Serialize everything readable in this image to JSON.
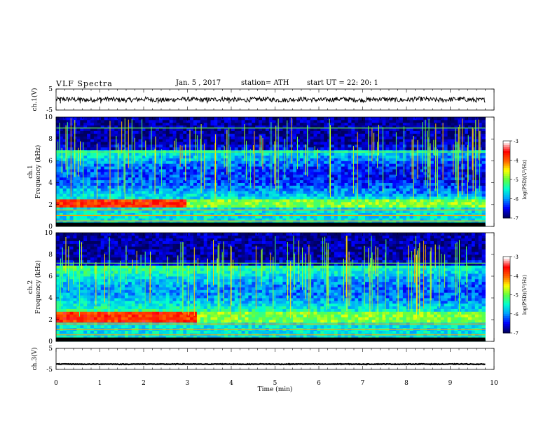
{
  "header": {
    "title": "VLF  Spectra",
    "date": "Jan. 5  , 2017",
    "station": "station= ATH",
    "start_ut": "start  UT  =   22: 20: 1"
  },
  "colors": {
    "trace": "#000000",
    "axis": "#000000",
    "colormap": [
      "#000060",
      "#0000ff",
      "#00a0ff",
      "#00ffd0",
      "#60ff40",
      "#ffff00",
      "#ff6000",
      "#ff0000",
      "#ffffff"
    ]
  },
  "chart_data": [
    {
      "type": "line",
      "ylabel": "ch.1(V)",
      "y_ticks": [
        "5",
        "-5"
      ],
      "ylim": [
        -5,
        5
      ],
      "xlim": [
        0,
        10
      ],
      "series": [
        {
          "mean": 0,
          "noise": 1.1,
          "x_end": 9.8
        }
      ]
    },
    {
      "type": "heatmap",
      "ylabel_line1": "ch.1",
      "ylabel_line2": "Frequency (kHz)",
      "y_ticks": [
        "0",
        "2",
        "4",
        "6",
        "8",
        "10"
      ],
      "ylim": [
        0,
        10
      ],
      "xlim": [
        0,
        10
      ],
      "x_end": 9.8,
      "colorbar": {
        "label": "log(PSD)(V²/Hz)",
        "ticks": [
          "-3",
          "-4",
          "-5",
          "-6",
          "-7"
        ],
        "range": [
          -7,
          -3
        ]
      },
      "features": {
        "strong_band_khz": [
          1.7,
          2.6
        ],
        "strong_band_until_min": 3.0,
        "hiss_band_khz": [
          2.8,
          7.0
        ],
        "lines_khz": [
          0.2,
          0.5,
          1.0,
          1.5,
          6.8,
          9.0
        ]
      }
    },
    {
      "type": "heatmap",
      "ylabel_line1": "ch.2",
      "ylabel_line2": "Frequency (kHz)",
      "y_ticks": [
        "0",
        "2",
        "4",
        "6",
        "8",
        "10"
      ],
      "ylim": [
        0,
        10
      ],
      "xlim": [
        0,
        10
      ],
      "x_end": 9.8,
      "colorbar": {
        "label": "log(PSD)(V²/Hz)",
        "ticks": [
          "-3",
          "-4",
          "-5",
          "-6",
          "-7"
        ],
        "range": [
          -7,
          -3
        ]
      },
      "features": {
        "strong_band_khz": [
          1.7,
          2.7
        ],
        "strong_band_until_min": 3.2,
        "hiss_band_khz": [
          2.8,
          7.0
        ],
        "lines_khz": [
          0.3,
          0.6,
          1.1,
          1.6,
          7.2
        ]
      }
    },
    {
      "type": "line",
      "ylabel": "ch.3(V)",
      "y_ticks": [
        "5",
        "-5"
      ],
      "ylim": [
        -5,
        5
      ],
      "xlim": [
        0,
        10
      ],
      "xlabel": "Time  (min)",
      "x_ticks": [
        "0",
        "1",
        "2",
        "3",
        "4",
        "5",
        "6",
        "7",
        "8",
        "9",
        "10"
      ],
      "series": [
        {
          "mean": -2.5,
          "noise": 0.15,
          "x_end": 9.8
        }
      ]
    }
  ]
}
